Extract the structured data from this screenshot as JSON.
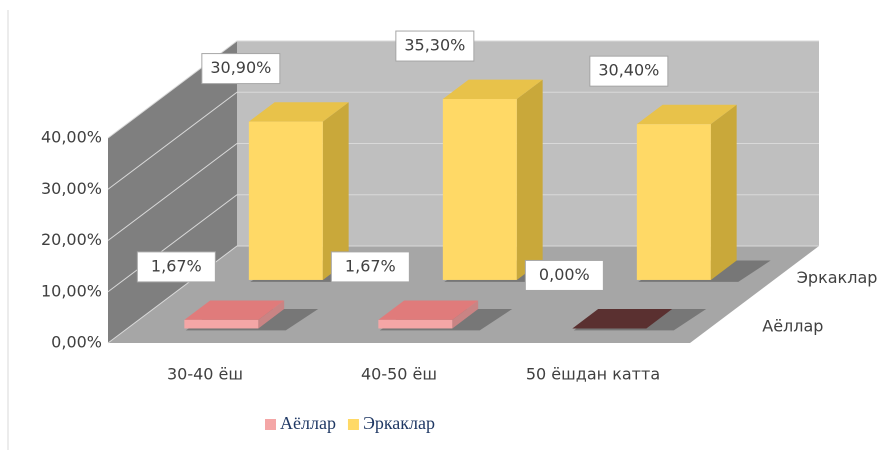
{
  "chart_data": {
    "type": "bar3d",
    "categories": [
      "30-40 ёш",
      "40-50 ёш",
      "50 ёшдан катта"
    ],
    "series": [
      {
        "name": "Аёллар",
        "color": "#f4a6a6",
        "values": [
          1.67,
          1.67,
          0.0
        ],
        "value_labels": [
          "1,67%",
          "1,67%",
          "0,00%"
        ]
      },
      {
        "name": "Эркаклар",
        "color": "#ffd966",
        "values": [
          30.9,
          35.3,
          30.4
        ],
        "value_labels": [
          "30,90%",
          "35,30%",
          "30,40%"
        ]
      }
    ],
    "ylim": [
      0,
      40
    ],
    "yticks": [
      {
        "value": 0,
        "label": "0,00%"
      },
      {
        "value": 10,
        "label": "10,00%"
      },
      {
        "value": 20,
        "label": "20,00%"
      },
      {
        "value": 30,
        "label": "30,00%"
      },
      {
        "value": 40,
        "label": "40,00%"
      }
    ],
    "grid": true,
    "legend": "bottom"
  }
}
